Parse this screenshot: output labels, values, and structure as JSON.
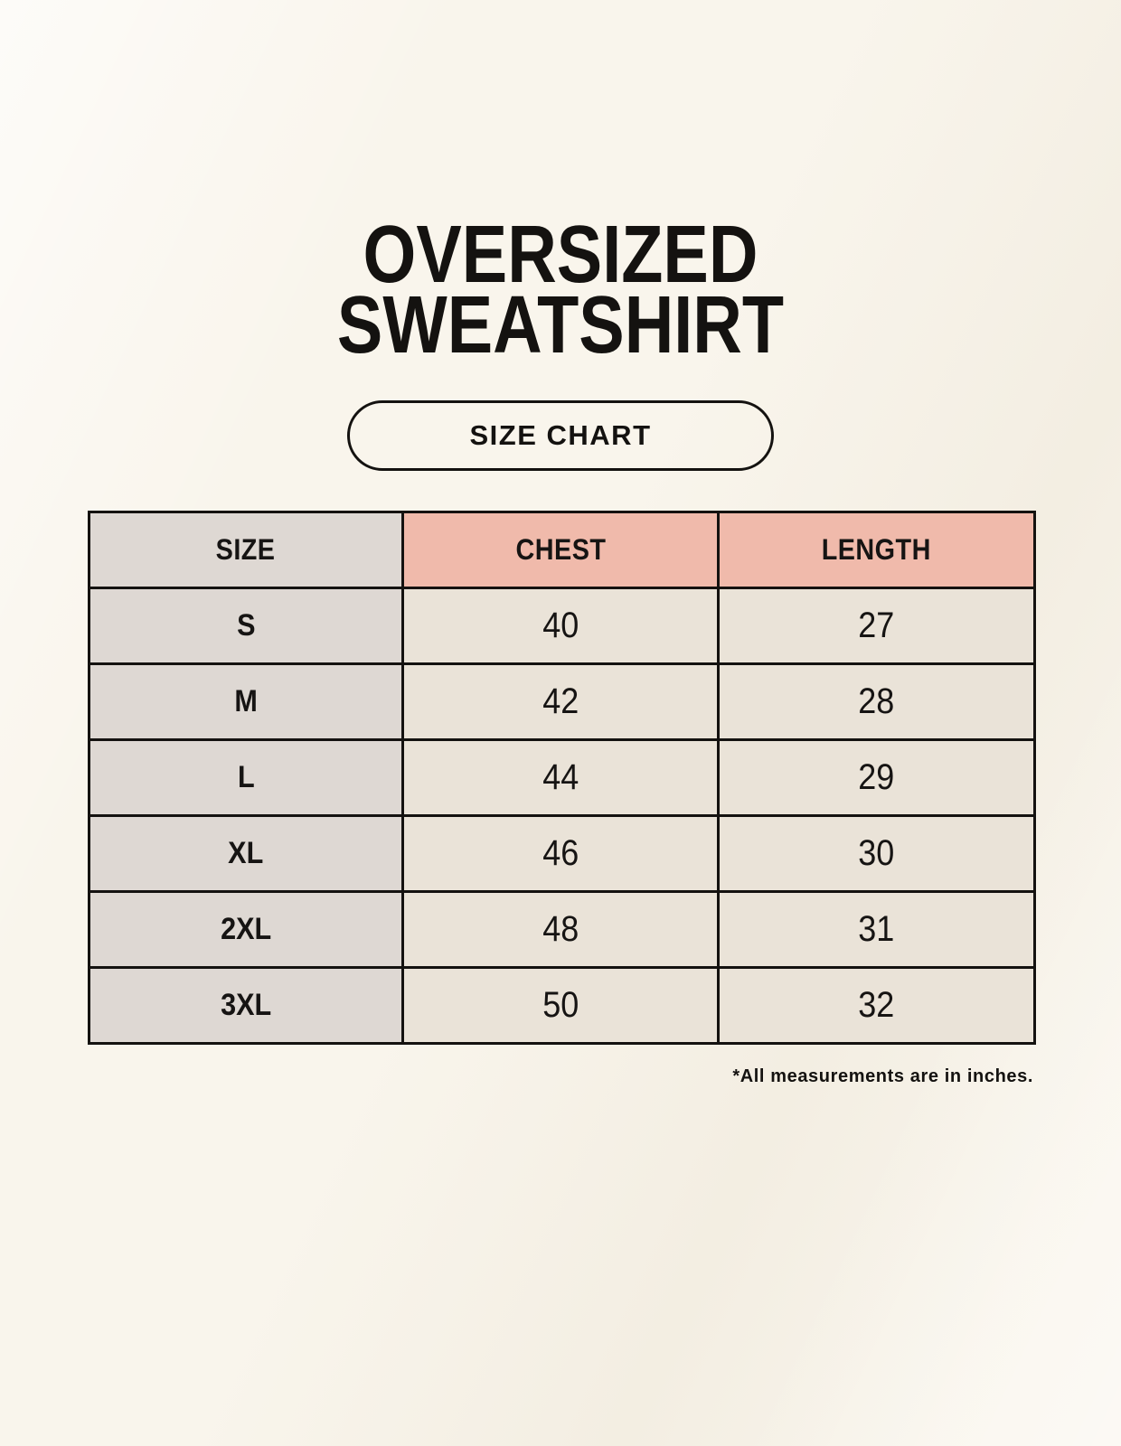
{
  "page": {
    "title": [
      "OVERSIZED",
      "SWEATSHIRT"
    ],
    "button_label": "SIZE CHART",
    "footnote": "*All measurements are in inches."
  },
  "chart_data": {
    "type": "table",
    "columns": [
      "SIZE",
      "CHEST",
      "LENGTH"
    ],
    "rows": [
      [
        "S",
        "40",
        "27"
      ],
      [
        "M",
        "42",
        "28"
      ],
      [
        "L",
        "44",
        "29"
      ],
      [
        "XL",
        "46",
        "30"
      ],
      [
        "2XL",
        "48",
        "31"
      ],
      [
        "3XL",
        "50",
        "32"
      ]
    ],
    "unit": "inches"
  },
  "colors": {
    "background": "#f9f5ec",
    "header_accent": "#f0baab",
    "size_column": "#ded8d3",
    "value_cell": "#eae3d8",
    "border": "#141210",
    "text": "#141210"
  }
}
